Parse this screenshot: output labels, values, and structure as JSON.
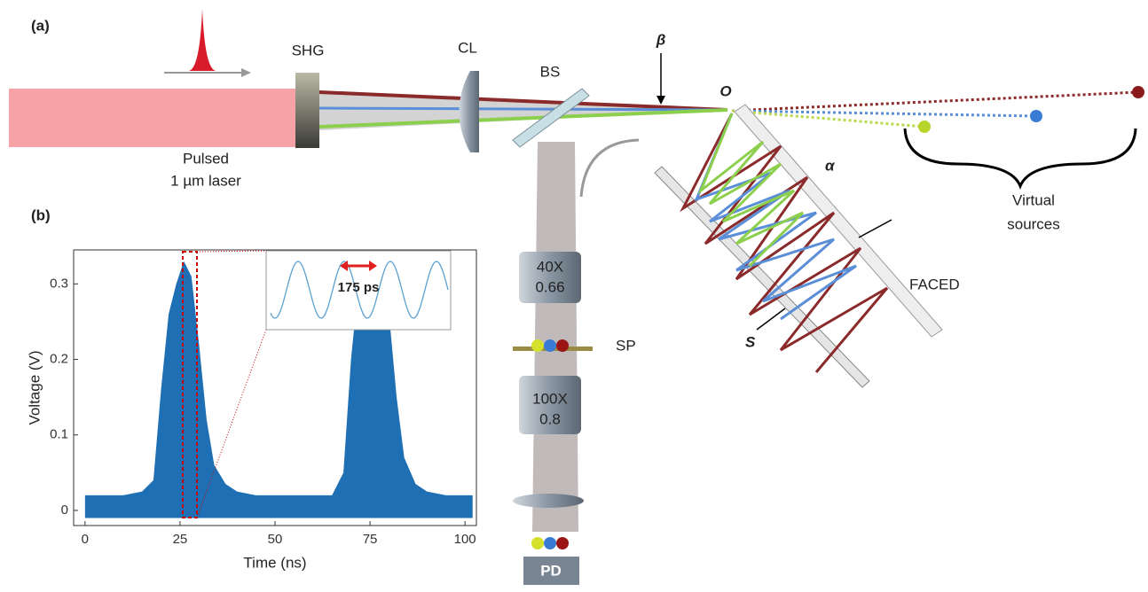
{
  "figure": {
    "panel_a": {
      "label": "(a)",
      "shg": "SHG",
      "cl": "CL",
      "bs": "BS",
      "beta": "β",
      "origin": "O",
      "laser": [
        "Pulsed",
        "1 µm laser"
      ],
      "virtual": [
        "Virtual",
        "sources"
      ],
      "alpha": "α",
      "faced": "FACED",
      "s": "S",
      "sp": "SP",
      "obj1": [
        "40X",
        "0.66"
      ],
      "obj2": [
        "100X",
        "0.8"
      ],
      "pd": "PD"
    },
    "panel_b": {
      "label": "(b)",
      "inset_label": "175 ps"
    }
  },
  "chart_data": {
    "type": "area",
    "x_label": "Time (ns)",
    "y_label": "Voltage (V)",
    "color": "#1f6fb4",
    "x": [
      0,
      5,
      10,
      15,
      18,
      20,
      22,
      24,
      26,
      28,
      30,
      32,
      34,
      37,
      40,
      45,
      50,
      55,
      60,
      65,
      68,
      70,
      72,
      74,
      76,
      78,
      80,
      82,
      84,
      87,
      90,
      95,
      100,
      102
    ],
    "upper": [
      0.02,
      0.02,
      0.02,
      0.025,
      0.04,
      0.16,
      0.26,
      0.3,
      0.33,
      0.31,
      0.22,
      0.12,
      0.06,
      0.035,
      0.025,
      0.02,
      0.02,
      0.02,
      0.02,
      0.02,
      0.05,
      0.2,
      0.3,
      0.33,
      0.33,
      0.33,
      0.26,
      0.15,
      0.07,
      0.035,
      0.025,
      0.02,
      0.02,
      0.02
    ],
    "lower": [
      -0.01,
      -0.01,
      -0.01,
      -0.01,
      -0.01,
      -0.01,
      -0.01,
      -0.01,
      -0.01,
      -0.01,
      -0.01,
      -0.01,
      -0.01,
      -0.01,
      -0.01,
      -0.01,
      -0.01,
      -0.01,
      -0.01,
      -0.01,
      -0.01,
      -0.01,
      -0.01,
      -0.01,
      -0.01,
      -0.01,
      -0.01,
      -0.01,
      -0.01,
      -0.01,
      -0.01,
      -0.01,
      -0.01,
      -0.01
    ],
    "xlim": [
      -3,
      103
    ],
    "ylim": [
      -0.02,
      0.345
    ],
    "xticks": [
      0,
      25,
      50,
      75,
      100
    ],
    "yticks": [
      0,
      0.1,
      0.2,
      0.3
    ]
  }
}
